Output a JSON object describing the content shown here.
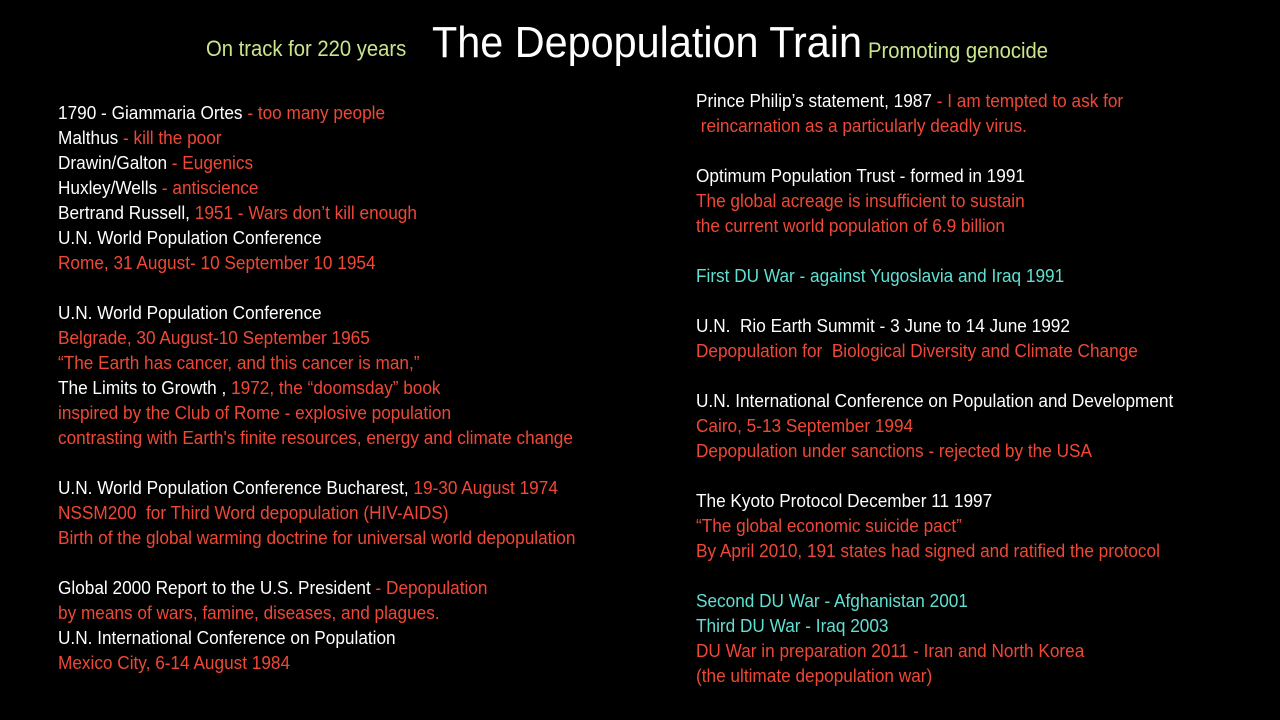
{
  "header": {
    "left_tagline": "On track for 220 years",
    "title": "The Depopulation Train",
    "right_tagline": "Promoting genocide"
  },
  "colors": {
    "background": "#000000",
    "title": "#ffffff",
    "tagline": "#c9e68a",
    "white_text": "#ffffff",
    "red_text": "#ef4836",
    "cyan_text": "#5fe0d2"
  },
  "left_column": [
    [
      {
        "text": "1790 - Giammaria Ortes",
        "color": "white"
      },
      {
        "text": " - too many people",
        "color": "red"
      }
    ],
    [
      {
        "text": "Malthus",
        "color": "white"
      },
      {
        "text": " - kill the poor",
        "color": "red"
      }
    ],
    [
      {
        "text": "Drawin/Galton",
        "color": "white"
      },
      {
        "text": " - Eugenics",
        "color": "red"
      }
    ],
    [
      {
        "text": "Huxley/Wells",
        "color": "white"
      },
      {
        "text": " - antiscience",
        "color": "red"
      }
    ],
    [
      {
        "text": "Bertrand Russell, ",
        "color": "white"
      },
      {
        "text": "1951 - Wars don’t kill enough",
        "color": "red"
      }
    ],
    [
      {
        "text": "U.N. World Population Conference",
        "color": "white"
      }
    ],
    [
      {
        "text": "Rome, 31 August- 10 September 10 1954",
        "color": "red"
      }
    ],
    [],
    [
      {
        "text": "U.N. World Population Conference",
        "color": "white"
      }
    ],
    [
      {
        "text": "Belgrade, 30 August-10 September 1965",
        "color": "red"
      }
    ],
    [
      {
        "text": "“The Earth has cancer, and this cancer is man,”",
        "color": "red"
      }
    ],
    [
      {
        "text": "The Limits to Growth , ",
        "color": "white"
      },
      {
        "text": "1972, the “doomsday” book",
        "color": "red"
      }
    ],
    [
      {
        "text": "inspired by the Club of Rome - explosive population",
        "color": "red"
      }
    ],
    [
      {
        "text": "contrasting with Earth's finite resources, energy and climate change",
        "color": "red"
      }
    ],
    [],
    [
      {
        "text": "U.N. World Population Conference Bucharest, ",
        "color": "white"
      },
      {
        "text": "19-30 August 1974",
        "color": "red"
      }
    ],
    [
      {
        "text": "NSSM200  for Third Word depopulation (HIV-AIDS)",
        "color": "red"
      }
    ],
    [
      {
        "text": "Birth of the global warming doctrine for universal world depopulation",
        "color": "red"
      }
    ],
    [],
    [
      {
        "text": "Global 2000 Report to the U.S. President",
        "color": "white"
      },
      {
        "text": " - Depopulation",
        "color": "red"
      }
    ],
    [
      {
        "text": "by means of wars, famine, diseases, and plagues.",
        "color": "red"
      }
    ],
    [
      {
        "text": "U.N. International Conference on Population",
        "color": "white"
      }
    ],
    [
      {
        "text": "Mexico City, 6-14 August 1984",
        "color": "red"
      }
    ]
  ],
  "right_column": [
    [
      {
        "text": "Prince Philip’s statement, 1987",
        "color": "white"
      },
      {
        "text": " - I am tempted to ask for",
        "color": "red"
      }
    ],
    [
      {
        "text": " reincarnation as a particularly deadly virus.",
        "color": "red"
      }
    ],
    [],
    [
      {
        "text": "Optimum Population Trust - formed in 1991",
        "color": "white"
      }
    ],
    [
      {
        "text": "The global acreage is insufficient to sustain",
        "color": "red"
      }
    ],
    [
      {
        "text": "the current world population of 6.9 billion",
        "color": "red"
      }
    ],
    [],
    [
      {
        "text": "First DU War - against Yugoslavia and Iraq 1991",
        "color": "cyan"
      }
    ],
    [],
    [
      {
        "text": "U.N.  Rio Earth Summit - 3 June to 14 June 1992",
        "color": "white"
      }
    ],
    [
      {
        "text": "Depopulation for  Biological Diversity and Climate Change",
        "color": "red"
      }
    ],
    [],
    [
      {
        "text": "U.N. International Conference on Population and Development",
        "color": "white"
      }
    ],
    [
      {
        "text": "Cairo, 5-13 September 1994",
        "color": "red"
      }
    ],
    [
      {
        "text": "Depopulation under sanctions - rejected by the USA",
        "color": "red"
      }
    ],
    [],
    [
      {
        "text": "The Kyoto Protocol December 11 1997",
        "color": "white"
      }
    ],
    [
      {
        "text": "“The global economic suicide pact”",
        "color": "red"
      }
    ],
    [
      {
        "text": "By April 2010, 191 states had signed and ratified the protocol",
        "color": "red"
      }
    ],
    [],
    [
      {
        "text": "Second DU War - Afghanistan 2001",
        "color": "cyan"
      }
    ],
    [
      {
        "text": "Third DU War - Iraq 2003",
        "color": "cyan"
      }
    ],
    [
      {
        "text": "DU War in preparation 2011 - Iran and North Korea",
        "color": "red"
      }
    ],
    [
      {
        "text": "(the ultimate depopulation war)",
        "color": "red"
      }
    ]
  ]
}
